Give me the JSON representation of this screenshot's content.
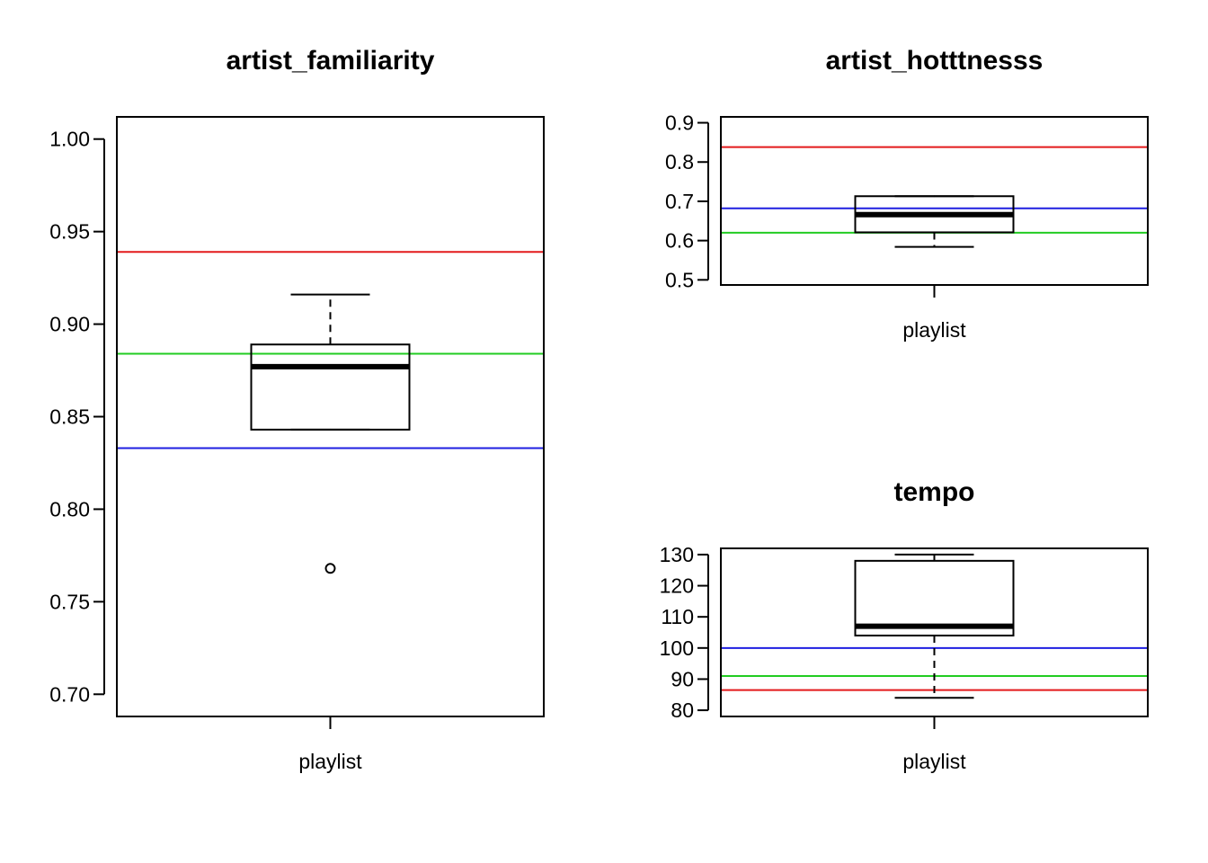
{
  "chart_data": [
    {
      "type": "boxplot",
      "title": "artist_familiarity",
      "categories": [
        "playlist"
      ],
      "ylim": [
        0.688,
        1.012
      ],
      "yticks": [
        0.7,
        0.75,
        0.8,
        0.85,
        0.9,
        0.95,
        1.0
      ],
      "ytick_labels": [
        "0.70",
        "0.75",
        "0.80",
        "0.85",
        "0.90",
        "0.95",
        "1.00"
      ],
      "box": {
        "whisker_low": 0.843,
        "q1": 0.843,
        "median": 0.877,
        "q3": 0.889,
        "whisker_high": 0.916,
        "outliers": [
          0.768
        ]
      },
      "reference_lines": [
        {
          "color": "#e31a1c",
          "value": 0.939
        },
        {
          "color": "#22cc22",
          "value": 0.884
        },
        {
          "color": "#1f1fe0",
          "value": 0.833
        }
      ]
    },
    {
      "type": "boxplot",
      "title": "artist_hotttnesss",
      "categories": [
        "playlist"
      ],
      "ylim": [
        0.487,
        0.915
      ],
      "yticks": [
        0.5,
        0.6,
        0.7,
        0.8,
        0.9
      ],
      "ytick_labels": [
        "0.5",
        "0.6",
        "0.7",
        "0.8",
        "0.9"
      ],
      "box": {
        "whisker_low": 0.584,
        "q1": 0.621,
        "median": 0.666,
        "q3": 0.713,
        "whisker_high": 0.713,
        "outliers": []
      },
      "reference_lines": [
        {
          "color": "#e31a1c",
          "value": 0.838
        },
        {
          "color": "#1f1fe0",
          "value": 0.682
        },
        {
          "color": "#22cc22",
          "value": 0.62
        }
      ]
    },
    {
      "type": "boxplot",
      "title": "tempo",
      "categories": [
        "playlist"
      ],
      "ylim": [
        78,
        132
      ],
      "yticks": [
        80,
        90,
        100,
        110,
        120,
        130
      ],
      "ytick_labels": [
        "80",
        "90",
        "100",
        "110",
        "120",
        "130"
      ],
      "box": {
        "whisker_low": 84,
        "q1": 104,
        "median": 107,
        "q3": 128,
        "whisker_high": 130,
        "outliers": []
      },
      "reference_lines": [
        {
          "color": "#1f1fe0",
          "value": 100
        },
        {
          "color": "#22cc22",
          "value": 91
        },
        {
          "color": "#e31a1c",
          "value": 86.5
        }
      ]
    }
  ]
}
